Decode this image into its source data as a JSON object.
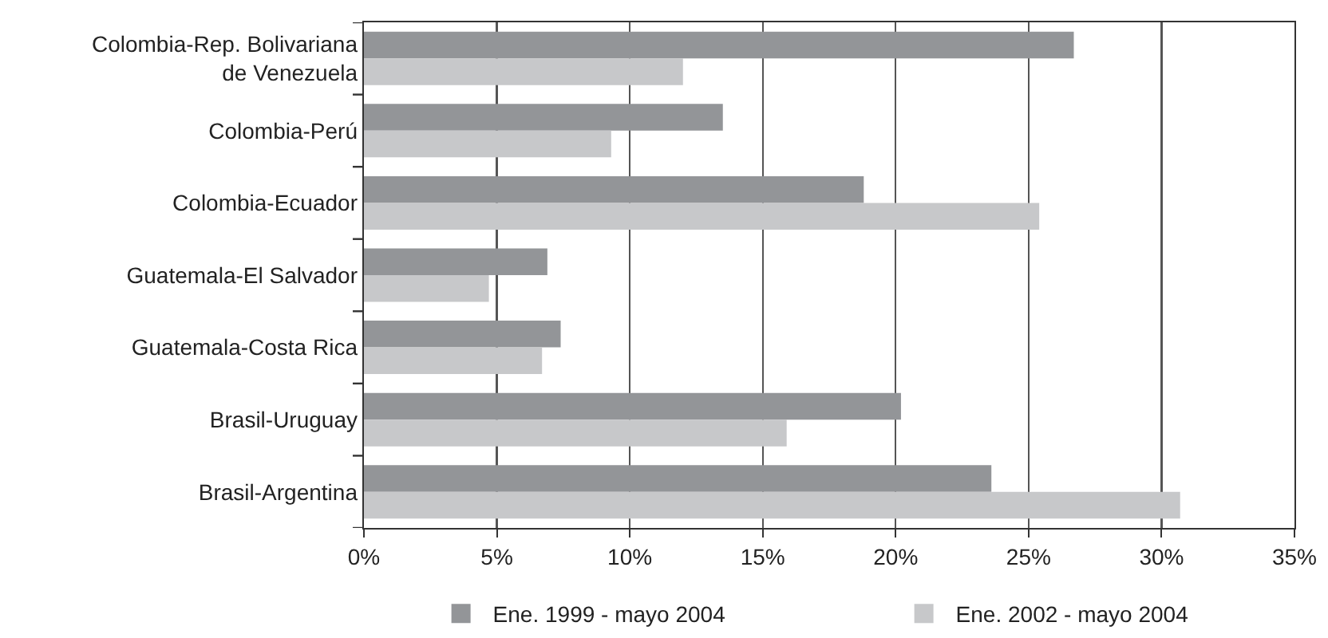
{
  "chart_data": {
    "type": "bar",
    "orientation": "horizontal",
    "categories": [
      "Colombia-Rep. Bolivariana de Venezuela",
      "Colombia-Perú",
      "Colombia-Ecuador",
      "Guatemala-El Salvador",
      "Guatemala-Costa Rica",
      "Brasil-Uruguay",
      "Brasil-Argentina"
    ],
    "series": [
      {
        "name": "Ene. 1999 - mayo 2004",
        "color": "#939598",
        "values": [
          26.7,
          13.5,
          18.8,
          6.9,
          7.4,
          20.2,
          23.6
        ]
      },
      {
        "name": "Ene. 2002 - mayo 2004",
        "color": "#c7c8ca",
        "values": [
          12.0,
          9.3,
          25.4,
          4.7,
          6.7,
          15.9,
          30.7
        ]
      }
    ],
    "xlim": [
      0,
      35
    ],
    "xticks": [
      {
        "value": 0,
        "label": "0%"
      },
      {
        "value": 5,
        "label": "5%"
      },
      {
        "value": 10,
        "label": "10%"
      },
      {
        "value": 15,
        "label": "15%"
      },
      {
        "value": 20,
        "label": "20%"
      },
      {
        "value": 25,
        "label": "25%"
      },
      {
        "value": 30,
        "label": "30%"
      },
      {
        "value": 35,
        "label": "35%"
      }
    ],
    "grid": "x",
    "legend": "bottom"
  }
}
